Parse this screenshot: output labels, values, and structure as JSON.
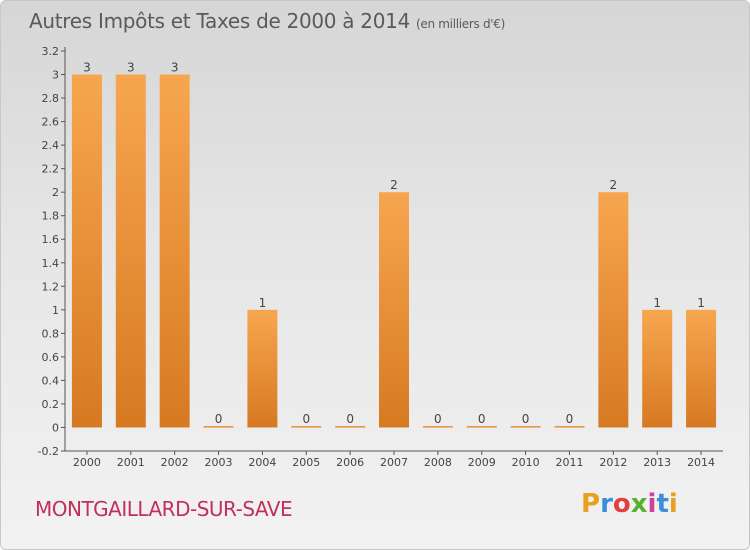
{
  "header": {
    "title": "Autres Impôts et Taxes de 2000 à 2014",
    "unit": "(en milliers d'€)"
  },
  "footer": {
    "commune": "MONTGAILLARD-SUR-SAVE",
    "logo_text": "Proxiti"
  },
  "colors": {
    "bar_light": "#f7a64f",
    "bar_dark": "#d67a22",
    "commune": "#c0305a"
  },
  "chart_data": {
    "type": "bar",
    "title": "Autres Impôts et Taxes de 2000 à 2014",
    "subtitle": "(en milliers d'€)",
    "categories": [
      "2000",
      "2001",
      "2002",
      "2003",
      "2004",
      "2005",
      "2006",
      "2007",
      "2008",
      "2009",
      "2010",
      "2011",
      "2012",
      "2013",
      "2014"
    ],
    "values": [
      3,
      3,
      3,
      0,
      1,
      0,
      0,
      2,
      0,
      0,
      0,
      0,
      2,
      1,
      1
    ],
    "data_labels": [
      "3",
      "3",
      "3",
      "0",
      "1",
      "0",
      "0",
      "2",
      "0",
      "0",
      "0",
      "0",
      "2",
      "1",
      "1"
    ],
    "yticks": [
      "-0.2",
      "0",
      "0.2",
      "0.4",
      "0.6",
      "0.8",
      "1",
      "1.2",
      "1.4",
      "1.6",
      "1.8",
      "2",
      "2.2",
      "2.4",
      "2.6",
      "2.8",
      "3",
      "3.2"
    ],
    "ylim": [
      -0.2,
      3.2
    ],
    "xlabel": "",
    "ylabel": "",
    "grid": false,
    "legend": "none"
  }
}
